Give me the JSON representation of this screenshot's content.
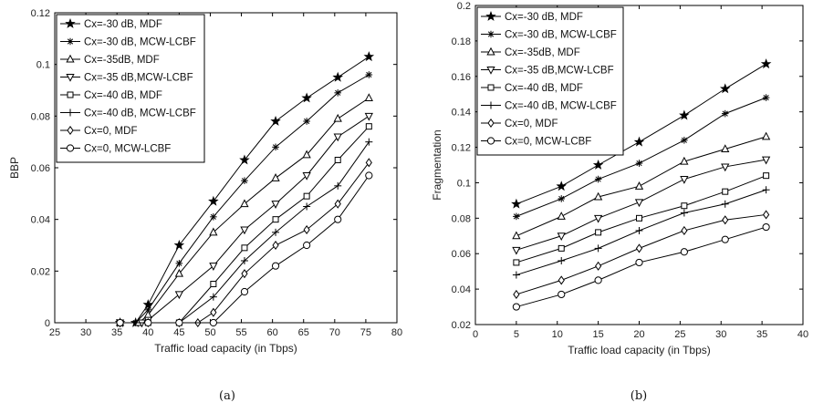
{
  "chart_data": [
    {
      "type": "line",
      "caption": "(a)",
      "xlabel": "Traffic load capacity (in Tbps)",
      "ylabel": "BBP",
      "xlim": [
        25,
        80
      ],
      "ylim": [
        0,
        0.12
      ],
      "xticks": [
        "25",
        "30",
        "35",
        "40",
        "45",
        "50",
        "55",
        "60",
        "65",
        "70",
        "75",
        "80"
      ],
      "yticks": [
        "0",
        "0.02",
        "0.04",
        "0.06",
        "0.08",
        "0.1",
        "0.12"
      ],
      "legend_position": "top-left",
      "series": [
        {
          "name": "Cx=-30 dB, MDF",
          "marker": "star",
          "points": [
            [
              35.5,
              0
            ],
            [
              38,
              0
            ],
            [
              40,
              0.007
            ],
            [
              45,
              0.03
            ],
            [
              50.5,
              0.047
            ],
            [
              55.5,
              0.063
            ],
            [
              60.5,
              0.078
            ],
            [
              65.5,
              0.087
            ],
            [
              70.5,
              0.095
            ],
            [
              75.5,
              0.103
            ]
          ]
        },
        {
          "name": "Cx=-30 dB, MCW-LCBF",
          "marker": "asterisk",
          "points": [
            [
              35.5,
              0
            ],
            [
              38,
              0
            ],
            [
              40,
              0.005
            ],
            [
              45,
              0.023
            ],
            [
              50.5,
              0.041
            ],
            [
              55.5,
              0.055
            ],
            [
              60.5,
              0.068
            ],
            [
              65.5,
              0.078
            ],
            [
              70.5,
              0.089
            ],
            [
              75.5,
              0.096
            ]
          ]
        },
        {
          "name": "Cx=-35dB, MDF",
          "marker": "triangle-up",
          "points": [
            [
              35.5,
              0
            ],
            [
              38.5,
              0
            ],
            [
              40,
              0.003
            ],
            [
              45,
              0.019
            ],
            [
              50.5,
              0.035
            ],
            [
              55.5,
              0.046
            ],
            [
              60.5,
              0.056
            ],
            [
              65.5,
              0.065
            ],
            [
              70.5,
              0.079
            ],
            [
              75.5,
              0.087
            ]
          ]
        },
        {
          "name": "Cx=-35 dB,MCW-LCBF",
          "marker": "triangle-down",
          "points": [
            [
              35.5,
              0
            ],
            [
              39,
              0
            ],
            [
              40,
              0.001
            ],
            [
              45,
              0.011
            ],
            [
              50.5,
              0.022
            ],
            [
              55.5,
              0.036
            ],
            [
              60.5,
              0.046
            ],
            [
              65.5,
              0.057
            ],
            [
              70.5,
              0.072
            ],
            [
              75.5,
              0.08
            ]
          ]
        },
        {
          "name": "Cx=-40 dB, MDF",
          "marker": "square",
          "points": [
            [
              35.5,
              0
            ],
            [
              40,
              0
            ],
            [
              45,
              0
            ],
            [
              50.5,
              0.015
            ],
            [
              55.5,
              0.029
            ],
            [
              60.5,
              0.04
            ],
            [
              65.5,
              0.049
            ],
            [
              70.5,
              0.063
            ],
            [
              75.5,
              0.076
            ]
          ]
        },
        {
          "name": "Cx=-40 dB, MCW-LCBF",
          "marker": "plus",
          "points": [
            [
              35.5,
              0
            ],
            [
              40,
              0
            ],
            [
              45,
              0
            ],
            [
              50.5,
              0.01
            ],
            [
              55.5,
              0.024
            ],
            [
              60.5,
              0.035
            ],
            [
              65.5,
              0.045
            ],
            [
              70.5,
              0.053
            ],
            [
              75.5,
              0.07
            ]
          ]
        },
        {
          "name": "Cx=0, MDF",
          "marker": "diamond",
          "points": [
            [
              35.5,
              0
            ],
            [
              40,
              0
            ],
            [
              45,
              0
            ],
            [
              48,
              0
            ],
            [
              50.5,
              0.004
            ],
            [
              55.5,
              0.019
            ],
            [
              60.5,
              0.03
            ],
            [
              65.5,
              0.036
            ],
            [
              70.5,
              0.046
            ],
            [
              75.5,
              0.062
            ]
          ]
        },
        {
          "name": "Cx=0, MCW-LCBF",
          "marker": "circle",
          "points": [
            [
              35.5,
              0
            ],
            [
              40,
              0
            ],
            [
              45,
              0
            ],
            [
              50.5,
              0
            ],
            [
              55.5,
              0.012
            ],
            [
              60.5,
              0.022
            ],
            [
              65.5,
              0.03
            ],
            [
              70.5,
              0.04
            ],
            [
              75.5,
              0.057
            ]
          ]
        }
      ]
    },
    {
      "type": "line",
      "caption": "(b)",
      "xlabel": "Traffic load capacity (in Tbps)",
      "ylabel": "Fragmentation",
      "xlim": [
        0,
        40
      ],
      "ylim": [
        0.02,
        0.2
      ],
      "xticks": [
        "0",
        "5",
        "10",
        "15",
        "20",
        "25",
        "30",
        "35",
        "40"
      ],
      "yticks": [
        "0.02",
        "0.04",
        "0.06",
        "0.08",
        "0.1",
        "0.12",
        "0.14",
        "0.16",
        "0.18",
        "0.2"
      ],
      "legend_position": "top-left",
      "series": [
        {
          "name": "Cx=-30 dB, MDF",
          "marker": "star",
          "points": [
            [
              5,
              0.088
            ],
            [
              10.5,
              0.098
            ],
            [
              15,
              0.11
            ],
            [
              20,
              0.123
            ],
            [
              25.5,
              0.138
            ],
            [
              30.5,
              0.153
            ],
            [
              35.5,
              0.167
            ]
          ]
        },
        {
          "name": "Cx=-30 dB, MCW-LCBF",
          "marker": "asterisk",
          "points": [
            [
              5,
              0.081
            ],
            [
              10.5,
              0.091
            ],
            [
              15,
              0.102
            ],
            [
              20,
              0.111
            ],
            [
              25.5,
              0.124
            ],
            [
              30.5,
              0.139
            ],
            [
              35.5,
              0.148
            ]
          ]
        },
        {
          "name": "Cx=-35dB, MDF",
          "marker": "triangle-up",
          "points": [
            [
              5,
              0.07
            ],
            [
              10.5,
              0.081
            ],
            [
              15,
              0.092
            ],
            [
              20,
              0.098
            ],
            [
              25.5,
              0.112
            ],
            [
              30.5,
              0.119
            ],
            [
              35.5,
              0.126
            ]
          ]
        },
        {
          "name": "Cx=-35 dB,MCW-LCBF",
          "marker": "triangle-down",
          "points": [
            [
              5,
              0.062
            ],
            [
              10.5,
              0.07
            ],
            [
              15,
              0.08
            ],
            [
              20,
              0.089
            ],
            [
              25.5,
              0.102
            ],
            [
              30.5,
              0.109
            ],
            [
              35.5,
              0.113
            ]
          ]
        },
        {
          "name": "Cx=-40 dB, MDF",
          "marker": "square",
          "points": [
            [
              5,
              0.055
            ],
            [
              10.5,
              0.063
            ],
            [
              15,
              0.072
            ],
            [
              20,
              0.08
            ],
            [
              25.5,
              0.087
            ],
            [
              30.5,
              0.095
            ],
            [
              35.5,
              0.104
            ]
          ]
        },
        {
          "name": "Cx=-40 dB, MCW-LCBF",
          "marker": "plus",
          "points": [
            [
              5,
              0.048
            ],
            [
              10.5,
              0.056
            ],
            [
              15,
              0.063
            ],
            [
              20,
              0.073
            ],
            [
              25.5,
              0.083
            ],
            [
              30.5,
              0.088
            ],
            [
              35.5,
              0.096
            ]
          ]
        },
        {
          "name": "Cx=0, MDF",
          "marker": "diamond",
          "points": [
            [
              5,
              0.037
            ],
            [
              10.5,
              0.045
            ],
            [
              15,
              0.053
            ],
            [
              20,
              0.063
            ],
            [
              25.5,
              0.073
            ],
            [
              30.5,
              0.079
            ],
            [
              35.5,
              0.082
            ]
          ]
        },
        {
          "name": "Cx=0, MCW-LCBF",
          "marker": "circle",
          "points": [
            [
              5,
              0.03
            ],
            [
              10.5,
              0.037
            ],
            [
              15,
              0.045
            ],
            [
              20,
              0.055
            ],
            [
              25.5,
              0.061
            ],
            [
              30.5,
              0.068
            ],
            [
              35.5,
              0.075
            ]
          ]
        }
      ]
    }
  ]
}
